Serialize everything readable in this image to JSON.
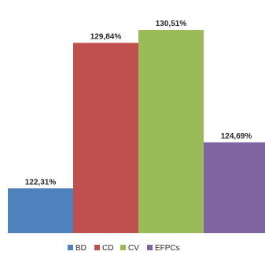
{
  "chart_data": {
    "type": "bar",
    "title": "",
    "xlabel": "",
    "ylabel": "",
    "ylim": [
      120,
      131
    ],
    "grid": false,
    "legend_position": "bottom",
    "series": [
      {
        "name": "BD",
        "value": 122.31,
        "label": "122,31%",
        "color": "#4f81bd"
      },
      {
        "name": "CD",
        "value": 129.84,
        "label": "129,84%",
        "color": "#c0504d"
      },
      {
        "name": "CV",
        "value": 130.51,
        "label": "130,51%",
        "color": "#9bbb59"
      },
      {
        "name": "EFPCs",
        "value": 124.69,
        "label": "124,69%",
        "color": "#8064a2"
      }
    ]
  }
}
